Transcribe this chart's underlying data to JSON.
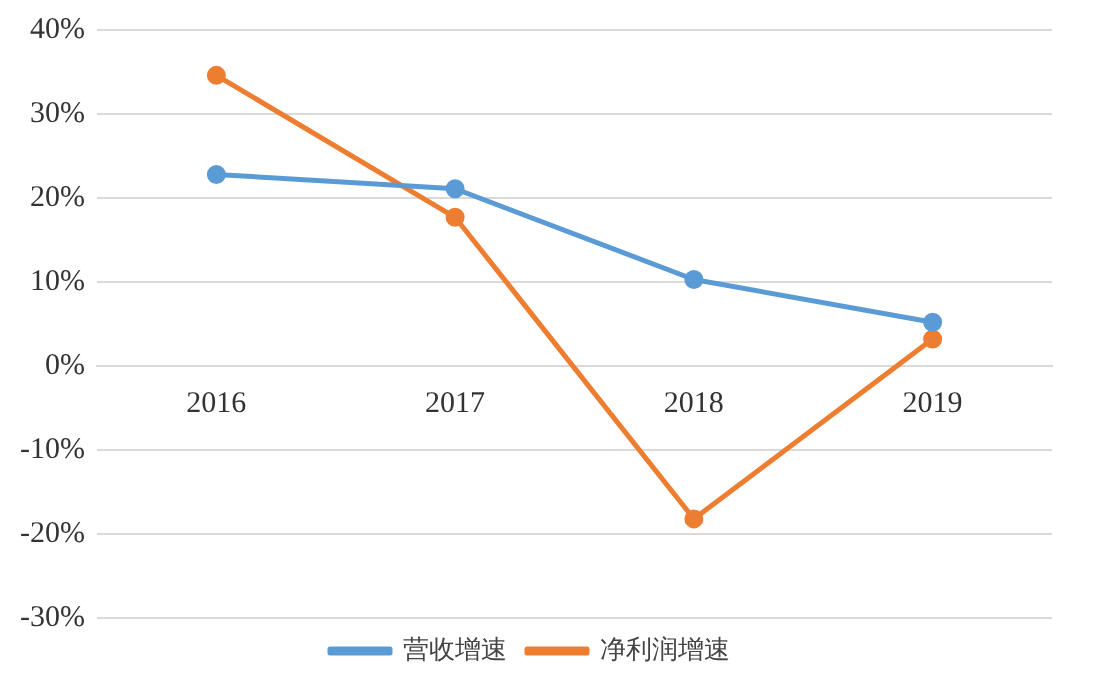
{
  "chart_data": {
    "type": "line",
    "categories": [
      "2016",
      "2017",
      "2018",
      "2019"
    ],
    "series": [
      {
        "name": "营收增速",
        "color": "#5b9bd5",
        "values": [
          22.8,
          21.1,
          10.3,
          5.2
        ]
      },
      {
        "name": "净利润增速",
        "color": "#ed7d31",
        "values": [
          34.6,
          17.7,
          -18.2,
          3.2
        ]
      }
    ],
    "ylim": [
      -30,
      40
    ],
    "yticks": [
      {
        "value": -30,
        "label": "-30%"
      },
      {
        "value": -20,
        "label": "-20%"
      },
      {
        "value": -10,
        "label": "-10%"
      },
      {
        "value": 0,
        "label": "0%"
      },
      {
        "value": 10,
        "label": "10%"
      },
      {
        "value": 20,
        "label": "20%"
      },
      {
        "value": 30,
        "label": "30%"
      },
      {
        "value": 40,
        "label": "40%"
      }
    ],
    "grid": "y",
    "legend": "bottom",
    "marker": "circle",
    "line_style": "solid"
  }
}
